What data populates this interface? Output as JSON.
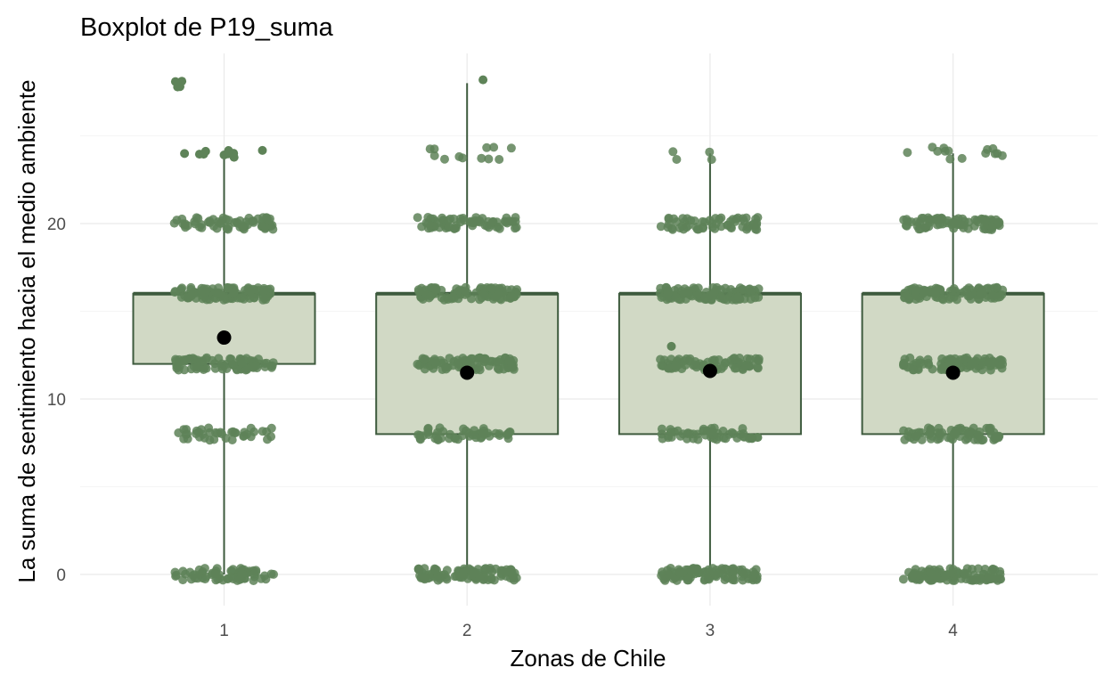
{
  "chart_data": {
    "type": "boxplot",
    "title": "Boxplot de P19_suma",
    "xlabel": "Zonas de Chile",
    "ylabel": "La suma de sentimiento hacia el medio ambiente",
    "categories": [
      "1",
      "2",
      "3",
      "4"
    ],
    "ylim": [
      -3.5,
      30.5
    ],
    "yticks": [
      0,
      10,
      20
    ],
    "grid": true,
    "colors": {
      "box_fill": "#d1d9c5",
      "box_line": "#3d5a3d",
      "point": "#5e8358",
      "mean": "#000000"
    },
    "boxes": [
      {
        "category": "1",
        "whisker_low": 0,
        "q1": 12,
        "median": 16,
        "q3": 16,
        "whisker_high": 24,
        "mean": 13.5,
        "levels": [
          {
            "y": 0,
            "n": 70
          },
          {
            "y": 8,
            "n": 40
          },
          {
            "y": 12,
            "n": 85
          },
          {
            "y": 16,
            "n": 100
          },
          {
            "y": 20,
            "n": 65
          }
        ],
        "outliers": [
          24,
          24,
          24,
          24,
          24,
          24,
          24,
          24,
          24,
          24,
          28,
          28,
          28,
          28
        ]
      },
      {
        "category": "2",
        "whisker_low": 0,
        "q1": 8,
        "median": 16,
        "q3": 16,
        "whisker_high": 28,
        "mean": 11.5,
        "levels": [
          {
            "y": 0,
            "n": 100
          },
          {
            "y": 8,
            "n": 50
          },
          {
            "y": 12,
            "n": 90
          },
          {
            "y": 16,
            "n": 100
          },
          {
            "y": 20,
            "n": 70
          },
          {
            "y": 24,
            "n": 12
          }
        ],
        "outliers": [
          28
        ]
      },
      {
        "category": "3",
        "whisker_low": 0,
        "q1": 8,
        "median": 16,
        "q3": 16,
        "whisker_high": 24,
        "mean": 11.6,
        "levels": [
          {
            "y": 0,
            "n": 100
          },
          {
            "y": 8,
            "n": 55
          },
          {
            "y": 12,
            "n": 80
          },
          {
            "y": 16,
            "n": 100
          },
          {
            "y": 20,
            "n": 60
          },
          {
            "y": 24,
            "n": 4
          }
        ],
        "outliers": [],
        "extra_points": [
          13
        ]
      },
      {
        "category": "4",
        "whisker_low": 0,
        "q1": 8,
        "median": 16,
        "q3": 16,
        "whisker_high": 24,
        "mean": 11.5,
        "levels": [
          {
            "y": 0,
            "n": 100
          },
          {
            "y": 8,
            "n": 70
          },
          {
            "y": 12,
            "n": 90
          },
          {
            "y": 16,
            "n": 100
          },
          {
            "y": 20,
            "n": 80
          },
          {
            "y": 24,
            "n": 14
          }
        ],
        "outliers": []
      }
    ]
  }
}
